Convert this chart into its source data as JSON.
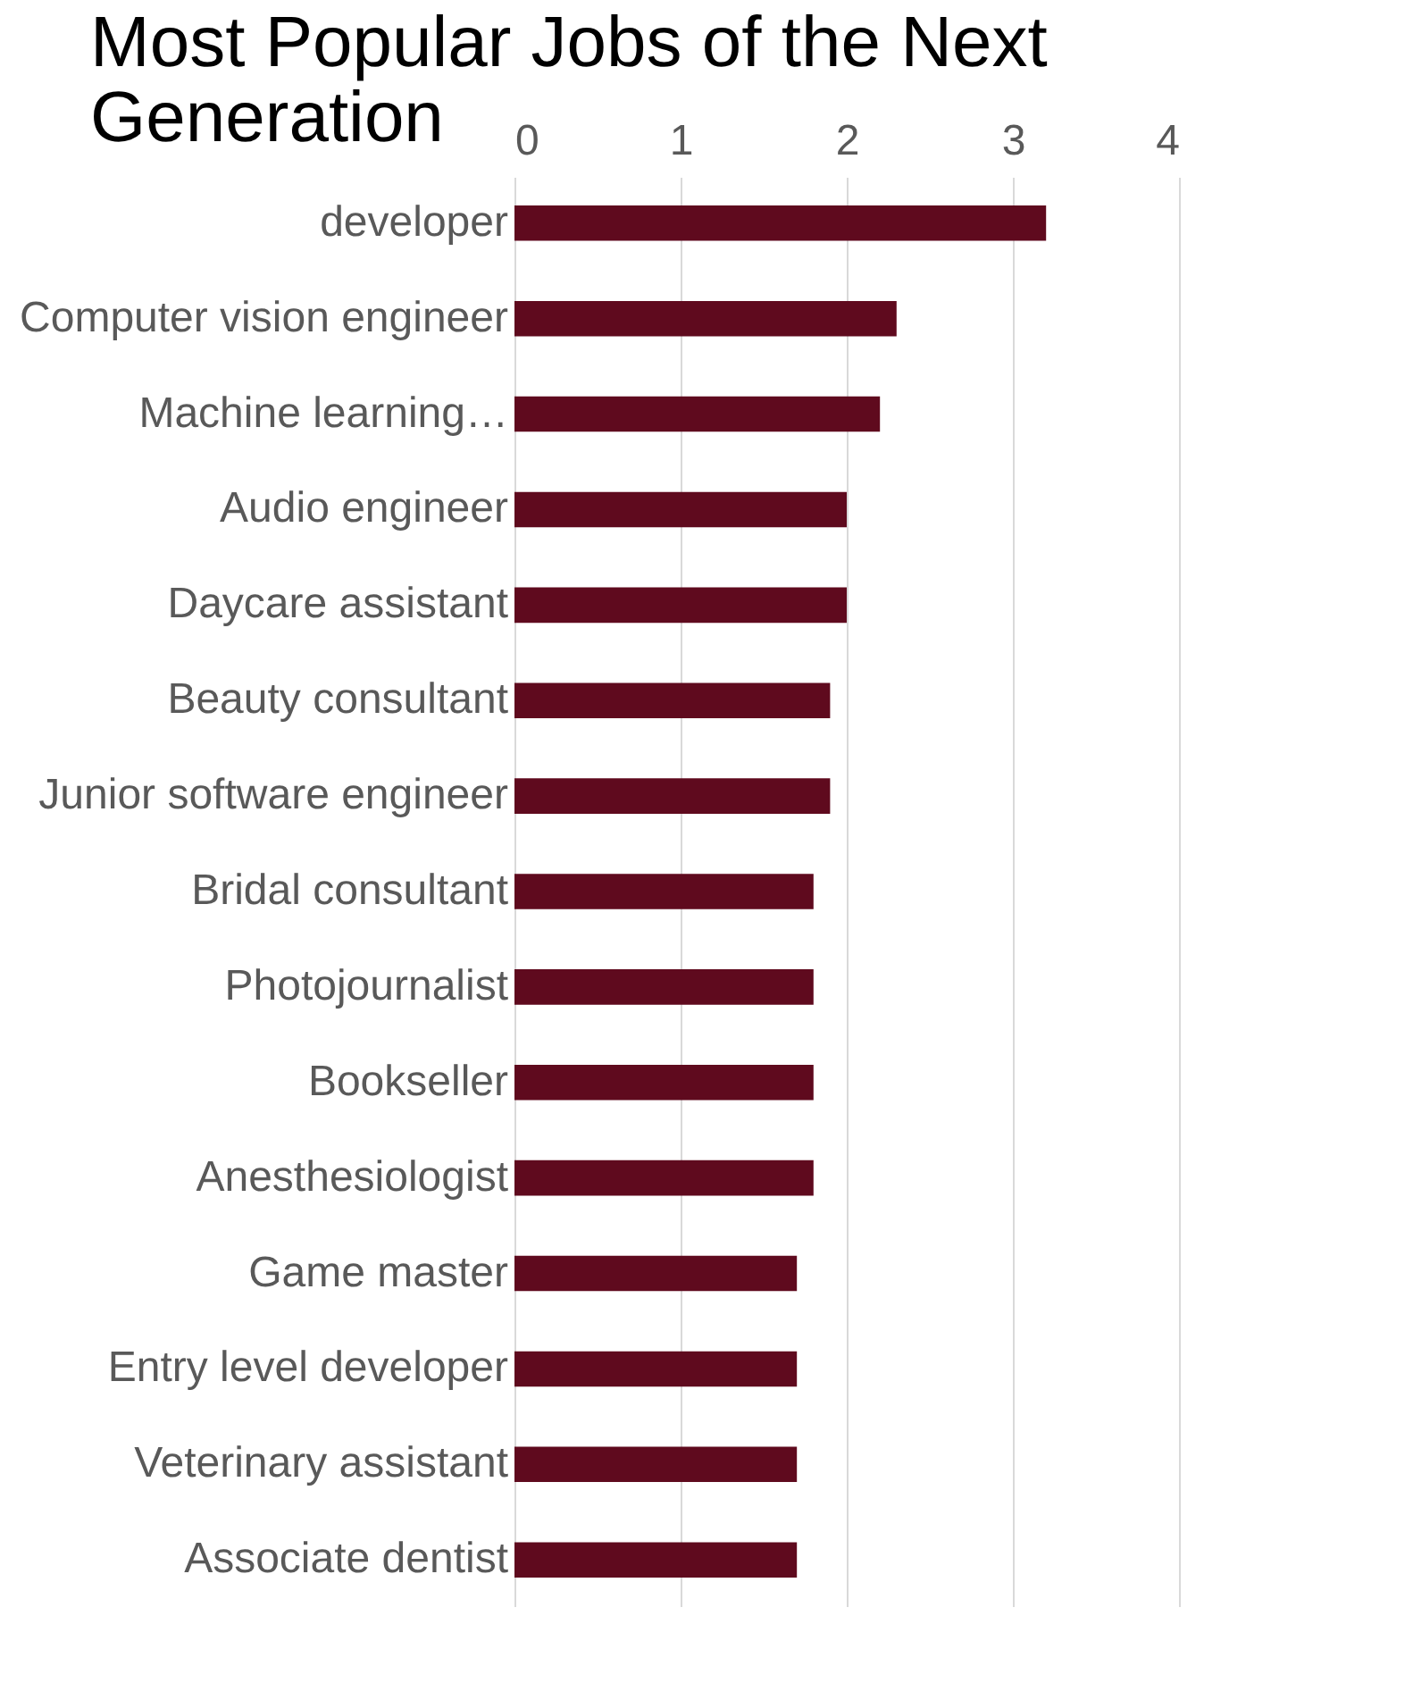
{
  "chart_data": {
    "type": "bar",
    "orientation": "horizontal",
    "title": "Most Popular Jobs of the Next Generation",
    "categories": [
      "developer",
      "Computer vision engineer",
      "Machine learning…",
      "Audio engineer",
      "Daycare assistant",
      "Beauty consultant",
      "Junior software engineer",
      "Bridal consultant",
      "Photojournalist",
      "Bookseller",
      "Anesthesiologist",
      "Game master",
      "Entry level developer",
      "Veterinary assistant",
      "Associate dentist"
    ],
    "values": [
      3.2,
      2.3,
      2.2,
      2.0,
      2.0,
      1.9,
      1.9,
      1.8,
      1.8,
      1.8,
      1.8,
      1.7,
      1.7,
      1.7,
      1.7
    ],
    "color": "#5f0a1e",
    "xlim": [
      0,
      4
    ],
    "xticks": [
      0,
      1,
      2,
      3,
      4
    ],
    "grid": "x"
  }
}
